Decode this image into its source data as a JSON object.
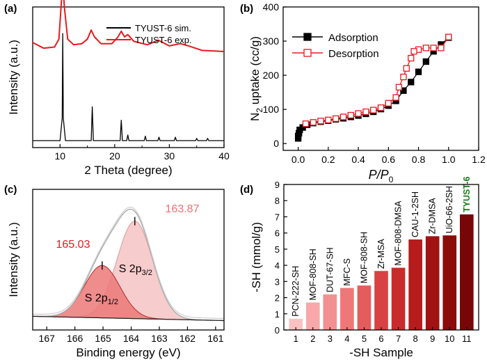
{
  "chart_data": [
    {
      "panel": "(a)",
      "type": "line",
      "xlabel": "2 Theta (degree)",
      "ylabel": "Intensity (a.u.)",
      "xlim": [
        5,
        40
      ],
      "xticks": [
        "10",
        "20",
        "30",
        "40"
      ],
      "legend": "top-right",
      "series": [
        {
          "name": "TYUST-6 sim.",
          "color": "#000000",
          "x": [
            5,
            10.0,
            10.4,
            10.5,
            10.6,
            11.0,
            15.7,
            15.9,
            16.1,
            21.0,
            21.2,
            21.4,
            22.2,
            22.4,
            22.6,
            25.4,
            25.6,
            25.8,
            27.9,
            28.1,
            28.3,
            30.9,
            31.1,
            31.3,
            34.8,
            35.0,
            35.2,
            36.8,
            37.0,
            37.2,
            40
          ],
          "y": [
            0,
            0,
            20,
            95,
            20,
            0,
            0,
            30,
            0,
            0,
            18,
            0,
            0,
            5,
            0,
            0,
            4,
            0,
            0,
            3,
            0,
            0,
            3,
            0,
            0,
            2,
            0,
            0,
            2,
            0,
            0
          ]
        },
        {
          "name": "TYUST-6 exp.",
          "color": "#e8191f",
          "x": [
            5,
            7,
            9,
            9.8,
            10.2,
            10.5,
            10.8,
            11.4,
            12.5,
            14,
            15,
            15.7,
            16.3,
            17.5,
            19.5,
            20.6,
            21.2,
            21.8,
            22.4,
            23.5,
            26,
            28,
            30,
            32,
            33.5,
            36,
            40
          ],
          "y": [
            87,
            82,
            83,
            90,
            120,
            140,
            118,
            90,
            85,
            86,
            90,
            98,
            92,
            86,
            86,
            92,
            97,
            92,
            94,
            88,
            85,
            89,
            84,
            86,
            84,
            80,
            79
          ]
        }
      ]
    },
    {
      "panel": "(b)",
      "type": "line",
      "xlabel_main": "P/P",
      "xlabel_sub": "0",
      "ylabel_main": "N",
      "ylabel_sub": "2",
      "ylabel_rest": " uptake (cc/g)",
      "xlim": [
        -0.1,
        1.2
      ],
      "ylim": [
        -20,
        400
      ],
      "xticks": [
        "0.0",
        "0.2",
        "0.4",
        "0.6",
        "0.8",
        "1.0",
        "1.2"
      ],
      "yticks": [
        "0",
        "100",
        "200",
        "300",
        "400"
      ],
      "legend": "top-left",
      "series": [
        {
          "name": "Adsorption",
          "color": "#000000",
          "marker": "filled-square",
          "x": [
            0.0,
            0.0,
            0.005,
            0.01,
            0.03,
            0.06,
            0.1,
            0.15,
            0.2,
            0.25,
            0.3,
            0.35,
            0.4,
            0.45,
            0.5,
            0.55,
            0.6,
            0.65,
            0.7,
            0.75,
            0.8,
            0.85,
            0.9,
            0.95,
            1.0
          ],
          "y": [
            15,
            22,
            30,
            40,
            47,
            55,
            60,
            64,
            67,
            71,
            74,
            78,
            82,
            87,
            93,
            101,
            111,
            125,
            155,
            180,
            210,
            240,
            270,
            290,
            310
          ]
        },
        {
          "name": "Desorption",
          "color": "#e8191f",
          "marker": "open-square",
          "x": [
            1.0,
            0.95,
            0.9,
            0.85,
            0.8,
            0.77,
            0.75,
            0.72,
            0.7,
            0.67,
            0.65,
            0.6,
            0.55,
            0.5,
            0.45,
            0.4,
            0.35,
            0.3,
            0.25,
            0.2,
            0.15,
            0.1,
            0.05
          ],
          "y": [
            312,
            280,
            280,
            280,
            275,
            270,
            250,
            220,
            195,
            165,
            135,
            118,
            105,
            98,
            93,
            88,
            83,
            78,
            73,
            69,
            66,
            62,
            58
          ]
        }
      ]
    },
    {
      "panel": "(c)",
      "type": "area",
      "xlabel": "Binding energy (eV)",
      "ylabel": "Intensity (a.u.)",
      "xlim": [
        167.5,
        160.7
      ],
      "xticks": [
        "167",
        "166",
        "165",
        "164",
        "163",
        "162",
        "161"
      ],
      "peaks": [
        {
          "center": 165.03,
          "height": 0.43,
          "sigma": 0.63,
          "label_main": "S 2p",
          "label_sub": "1/2",
          "value_label": "165.03",
          "fill": "#ec7878"
        },
        {
          "center": 163.87,
          "height": 0.8,
          "sigma": 0.63,
          "label_main": "S 2p",
          "label_sub": "3/2",
          "value_label": "163.87",
          "fill": "#f7cccc"
        }
      ],
      "baseline": {
        "left": 0.055,
        "right": 0.02
      },
      "envelope_color": "#aaaaaa"
    },
    {
      "panel": "(d)",
      "type": "bar",
      "xlabel": "-SH Sample",
      "ylabel": "-SH (mmol/g)",
      "ylim": [
        0,
        9
      ],
      "yticks": [
        "0",
        "1",
        "2",
        "3",
        "4",
        "5",
        "6",
        "7",
        "8",
        "9"
      ],
      "categories": [
        "1",
        "2",
        "3",
        "4",
        "5",
        "6",
        "7",
        "8",
        "9",
        "10",
        "11"
      ],
      "bar_labels": [
        "PCN-222-SH",
        "MOF-808-SH",
        "DUT-67-SH",
        "MFC-S",
        "MOF-808-SH",
        "Zr-MSA",
        "MOF-808-DMSA",
        "CAU-1-2SH",
        "Zr-DMSA",
        "UiO-66-2SH",
        "TYUST-6"
      ],
      "values": [
        0.7,
        1.7,
        2.2,
        2.6,
        2.75,
        3.65,
        3.85,
        5.6,
        5.8,
        5.85,
        7.15
      ],
      "bar_colors": [
        "#fbc2c2",
        "#f8a8a8",
        "#f39090",
        "#ee7777",
        "#e55c5c",
        "#d84242",
        "#c82b2b",
        "#b61c1c",
        "#a11212",
        "#8c0b0b",
        "#790606"
      ],
      "label_colors": [
        "#000000",
        "#000000",
        "#000000",
        "#000000",
        "#000000",
        "#000000",
        "#000000",
        "#000000",
        "#000000",
        "#000000",
        "#1b7a1b"
      ]
    }
  ]
}
